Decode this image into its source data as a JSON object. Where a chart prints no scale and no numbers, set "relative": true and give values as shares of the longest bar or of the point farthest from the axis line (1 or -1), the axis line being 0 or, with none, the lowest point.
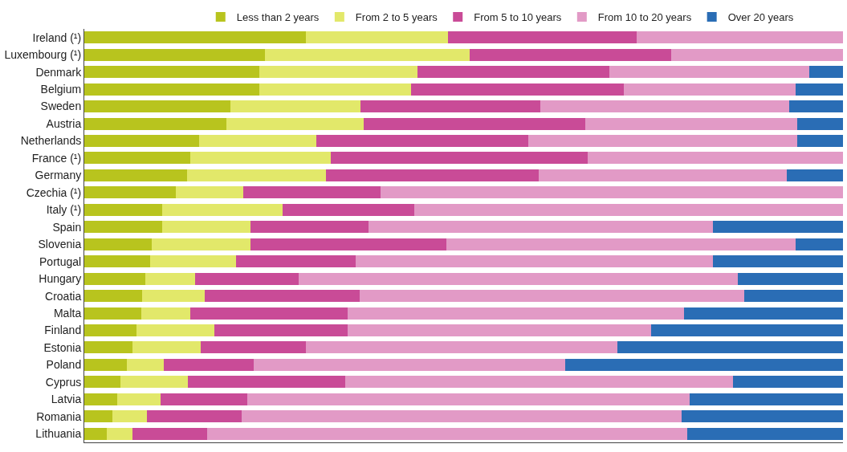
{
  "chart_data": {
    "type": "bar",
    "orientation": "horizontal",
    "stacked": true,
    "relative": true,
    "legend": "top",
    "categories": [
      "Ireland (¹)",
      "Luxembourg (¹)",
      "Denmark",
      "Belgium",
      "Sweden",
      "Austria",
      "Netherlands",
      "France (¹)",
      "Germany",
      "Czechia (¹)",
      "Italy (¹)",
      "Spain",
      "Slovenia",
      "Portugal",
      "Hungary",
      "Croatia",
      "Malta",
      "Finland",
      "Estonia",
      "Poland",
      "Cyprus",
      "Latvia",
      "Romania",
      "Lithuania"
    ],
    "series": [
      {
        "name": "Less than 2 years",
        "color": "#b8c41e",
        "values": [
          0.292,
          0.238,
          0.231,
          0.231,
          0.193,
          0.187,
          0.151,
          0.14,
          0.135,
          0.121,
          0.103,
          0.103,
          0.089,
          0.087,
          0.08,
          0.076,
          0.075,
          0.069,
          0.063,
          0.056,
          0.048,
          0.043,
          0.037,
          0.03
        ]
      },
      {
        "name": "From 2 to 5 years",
        "color": "#e2e86a",
        "values": [
          0.187,
          0.27,
          0.208,
          0.2,
          0.171,
          0.181,
          0.155,
          0.185,
          0.183,
          0.089,
          0.158,
          0.116,
          0.13,
          0.113,
          0.066,
          0.083,
          0.065,
          0.102,
          0.09,
          0.049,
          0.088,
          0.057,
          0.046,
          0.034
        ]
      },
      {
        "name": "From 5 to 10 years",
        "color": "#c94b97",
        "values": [
          0.249,
          0.266,
          0.253,
          0.28,
          0.237,
          0.292,
          0.279,
          0.338,
          0.281,
          0.18,
          0.174,
          0.156,
          0.258,
          0.158,
          0.137,
          0.204,
          0.207,
          0.176,
          0.139,
          0.118,
          0.208,
          0.115,
          0.124,
          0.098
        ]
      },
      {
        "name": "From 10 to 20 years",
        "color": "#e29ac6",
        "values": [
          0.272,
          0.226,
          0.264,
          0.227,
          0.328,
          0.28,
          0.355,
          0.337,
          0.327,
          0.61,
          0.565,
          0.454,
          0.461,
          0.471,
          0.578,
          0.507,
          0.444,
          0.4,
          0.411,
          0.411,
          0.511,
          0.583,
          0.58,
          0.633
        ]
      },
      {
        "name": "Over 20 years",
        "color": "#2a6db5",
        "values": [
          0,
          0,
          0.044,
          0.062,
          0.071,
          0.06,
          0.06,
          0,
          0.074,
          0,
          0,
          0.171,
          0.062,
          0.171,
          0.139,
          0.13,
          0.209,
          0.253,
          0.297,
          0.366,
          0.145,
          0.202,
          0.213,
          0.205
        ]
      }
    ]
  }
}
